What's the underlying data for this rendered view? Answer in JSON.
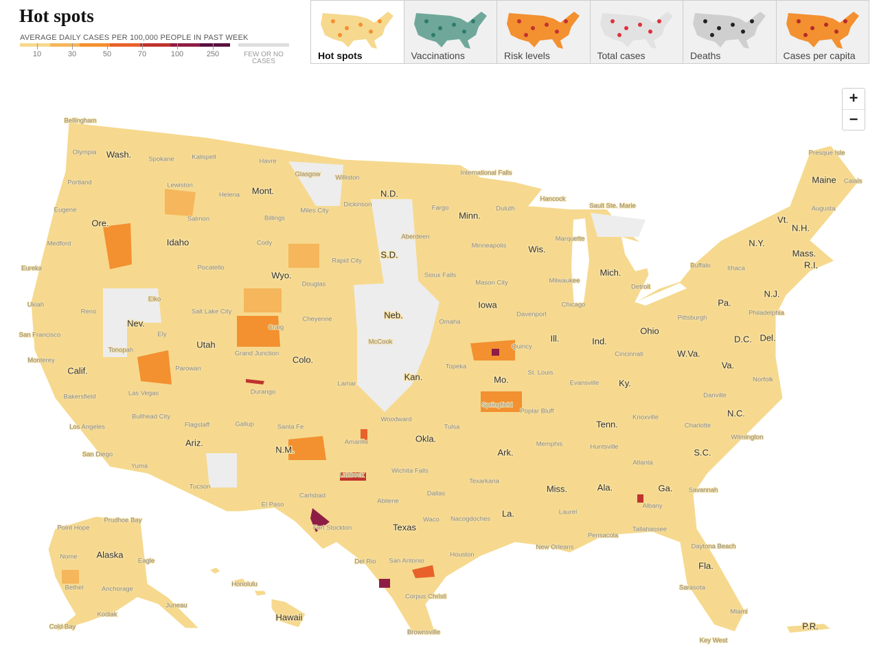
{
  "header": {
    "title": "Hot spots",
    "legend": {
      "caption": "AVERAGE DAILY CASES PER 100,000 PEOPLE IN PAST WEEK",
      "ticks": [
        "10",
        "30",
        "50",
        "70",
        "100",
        "250"
      ],
      "none_label": "FEW OR NO CASES"
    }
  },
  "tabs": [
    "Hot spots",
    "Vaccinations",
    "Risk levels",
    "Total cases",
    "Deaths",
    "Cases per capita"
  ],
  "zoom": {
    "in": "+",
    "out": "−"
  },
  "map": {
    "state_labels": [
      "Wash.",
      "Ore.",
      "Calif.",
      "Idaho",
      "Nev.",
      "Mont.",
      "Wyo.",
      "Utah",
      "Colo.",
      "Ariz.",
      "N.M.",
      "N.D.",
      "S.D.",
      "Neb.",
      "Kan.",
      "Okla.",
      "Texas",
      "Minn.",
      "Iowa",
      "Mo.",
      "Ark.",
      "La.",
      "Wis.",
      "Ill.",
      "Mich.",
      "Ind.",
      "Ohio",
      "Ky.",
      "Tenn.",
      "Miss.",
      "Ala.",
      "Ga.",
      "Fla.",
      "S.C.",
      "N.C.",
      "Va.",
      "W.Va.",
      "Pa.",
      "N.Y.",
      "D.C.",
      "Del.",
      "N.J.",
      "Vt.",
      "N.H.",
      "Maine",
      "Mass.",
      "R.I.",
      "Alaska",
      "Hawaii",
      "P.R."
    ],
    "city_labels": [
      "Bellingham",
      "Olympia",
      "Spokane",
      "Kalispell",
      "Havre",
      "Portland",
      "Lewiston",
      "Glasgow",
      "Williston",
      "International Falls",
      "Helena",
      "Eugene",
      "Salmon",
      "Miles City",
      "Dickinson",
      "Billings",
      "Fargo",
      "Duluth",
      "Hancock",
      "Sault Ste. Marie",
      "Aberdeen",
      "Medford",
      "Cody",
      "Minneapolis",
      "Marquette",
      "Presque Isle",
      "Calais",
      "Augusta",
      "Eureka",
      "Pocatello",
      "Rapid City",
      "Sioux Falls",
      "Douglas",
      "Mason City",
      "Milwaukee",
      "Buffalo",
      "Ithaca",
      "Detroit",
      "Ukiah",
      "Elko",
      "Salt Lake City",
      "Chicago",
      "Davenport",
      "Reno",
      "Cheyenne",
      "Omaha",
      "Pittsburgh",
      "Philadelphia",
      "San Francisco",
      "Ely",
      "Craig",
      "McCook",
      "Quincy",
      "Cincinnati",
      "Monterey",
      "Tonopah",
      "Grand Junction",
      "Topeka",
      "St. Louis",
      "Parowan",
      "Lamar",
      "Norfolk",
      "Bakersfield",
      "Durango",
      "Evansville",
      "Danville",
      "Las Vegas",
      "Springfield",
      "Poplar Bluff",
      "Knoxville",
      "Woodward",
      "Bullhead City",
      "Los Angeles",
      "Flagstaff",
      "Gallup",
      "Santa Fe",
      "Charlotte",
      "Amarillo",
      "Tulsa",
      "Memphis",
      "Wilmington",
      "Huntsville",
      "San Diego",
      "Atlanta",
      "Yuma",
      "Wichita Falls",
      "Texarkana",
      "Tucson",
      "Lubbock",
      "Carlsbad",
      "Dallas",
      "Savannah",
      "El Paso",
      "Abilene",
      "Albany",
      "Laurel",
      "Nacogdoches",
      "Waco",
      "Pensacola",
      "Tallahassee",
      "Fort Stockton",
      "Houston",
      "New Orleans",
      "Daytona Beach",
      "Del Rio",
      "San Antonio",
      "Corpus Christi",
      "Sarasota",
      "Miami",
      "Brownsville",
      "Key West",
      "Point Hope",
      "Prudhoe Bay",
      "Nome",
      "Eagle",
      "Bethel",
      "Anchorage",
      "Honolulu",
      "Juneau",
      "Kodiak",
      "Cold Bay"
    ]
  }
}
